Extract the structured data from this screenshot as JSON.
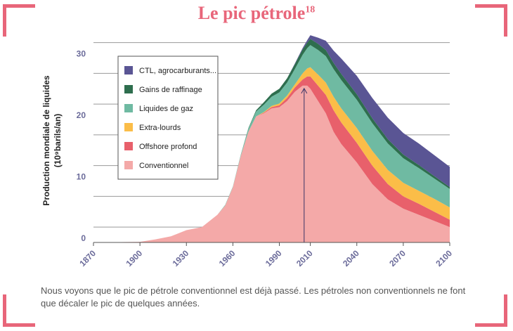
{
  "title": "Le pic pétrole",
  "title_footnote": "18",
  "caption": "Nous voyons que le pic de pétrole conventionnel est déjà passé. Les pétroles non conventionnels ne font que décaler le pic de quelques années.",
  "colors": {
    "accent": "#e8667a",
    "tick_text": "#6b6b9a"
  },
  "chart_data": {
    "type": "area",
    "stacked": true,
    "ylabel_line1": "Production mondiale de liquides",
    "ylabel_line2": "(10⁹barils/an)",
    "xlim": [
      1870,
      2100
    ],
    "ylim": [
      0,
      36
    ],
    "x_ticks": [
      1870,
      1900,
      1930,
      1960,
      1990,
      2010,
      2040,
      2070,
      2100
    ],
    "y_ticks": [
      0,
      10,
      20,
      30
    ],
    "grid": true,
    "legend_position": "top-left",
    "peak_marker_year": 2006,
    "x": [
      1870,
      1900,
      1910,
      1920,
      1930,
      1940,
      1950,
      1955,
      1960,
      1965,
      1970,
      1975,
      1980,
      1985,
      1990,
      1995,
      2000,
      2005,
      2008,
      2010,
      2015,
      2020,
      2025,
      2030,
      2040,
      2050,
      2060,
      2070,
      2080,
      2090,
      2100
    ],
    "series": [
      {
        "name": "Conventionnel",
        "color": "#f4a9a8",
        "values": [
          0,
          0.1,
          0.5,
          1,
          2,
          2.5,
          4.5,
          6,
          9,
          14,
          18,
          20.5,
          21,
          21.8,
          22,
          23,
          24.5,
          25.5,
          25.5,
          25,
          23,
          21,
          18,
          16,
          13,
          9.5,
          7,
          5.5,
          4.5,
          3.5,
          2.5
        ]
      },
      {
        "name": "Offshore profond",
        "color": "#e8606b",
        "values": [
          0,
          0,
          0,
          0,
          0,
          0,
          0,
          0,
          0,
          0,
          0,
          0,
          0.1,
          0.2,
          0.3,
          0.5,
          0.7,
          1,
          1.5,
          2,
          2.5,
          3,
          3.5,
          3.5,
          3.2,
          3,
          2.5,
          2,
          1.8,
          1.5,
          1.2
        ]
      },
      {
        "name": "Extra-lourds",
        "color": "#fbbd48",
        "values": [
          0,
          0,
          0,
          0,
          0,
          0,
          0,
          0,
          0,
          0,
          0,
          0,
          0.1,
          0.2,
          0.3,
          0.4,
          0.5,
          1,
          1.3,
          1.5,
          1.8,
          2,
          2.2,
          2.3,
          2.4,
          2.4,
          2.3,
          2.2,
          2.1,
          2.1,
          2
        ]
      },
      {
        "name": "Liquides de gaz",
        "color": "#6fbaa2",
        "values": [
          0,
          0,
          0,
          0,
          0,
          0,
          0,
          0.1,
          0.1,
          0.2,
          0.5,
          0.8,
          1.2,
          1.5,
          1.8,
          2.1,
          2.5,
          3,
          3.3,
          3.6,
          4,
          4.3,
          4.5,
          4.6,
          4.6,
          4.5,
          4.3,
          4,
          3.7,
          3.3,
          3
        ]
      },
      {
        "name": "Gains de raffinage",
        "color": "#2e6e4e",
        "values": [
          0,
          0,
          0,
          0,
          0,
          0,
          0,
          0,
          0,
          0,
          0.1,
          0.2,
          0.4,
          0.5,
          0.6,
          0.7,
          0.8,
          0.9,
          0.9,
          1,
          1,
          1,
          1,
          1,
          0.9,
          0.8,
          0.7,
          0.6,
          0.5,
          0.4,
          0.3
        ]
      },
      {
        "name": "CTL, agrocarburants...",
        "color": "#5a5594",
        "values": [
          0,
          0,
          0,
          0,
          0,
          0,
          0,
          0,
          0,
          0,
          0,
          0,
          0,
          0,
          0,
          0,
          0.1,
          0.2,
          0.4,
          0.6,
          1,
          1.5,
          2,
          2.5,
          3,
          3.3,
          3.5,
          3.5,
          3.5,
          3.4,
          3.3
        ]
      }
    ]
  }
}
